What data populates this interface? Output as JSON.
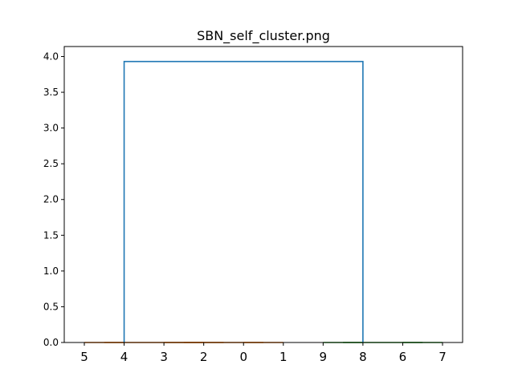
{
  "chart_data": {
    "type": "dendrogram",
    "title": "SBN_self_cluster.png",
    "xlabel": "",
    "ylabel": "",
    "leaf_order": [
      "5",
      "4",
      "3",
      "2",
      "0",
      "1",
      "9",
      "8",
      "6",
      "7"
    ],
    "ylim": [
      0,
      4.14
    ],
    "yticks": [
      "0.0",
      "0.5",
      "1.0",
      "1.5",
      "2.0",
      "2.5",
      "3.0",
      "3.5",
      "4.0"
    ],
    "ytick_values": [
      0,
      0.5,
      1.0,
      1.5,
      2.0,
      2.5,
      3.0,
      3.5,
      4.0
    ],
    "grid": false,
    "links": [
      {
        "name": "link-cluster-a-1",
        "left": 0,
        "right": 1,
        "height": 0.0,
        "color": "#ff7f0e"
      },
      {
        "name": "link-cluster-a-2",
        "left": 2,
        "right": 3,
        "height": 0.0,
        "color": "#ff7f0e"
      },
      {
        "name": "link-cluster-a-3",
        "left": 4,
        "right": 5,
        "height": 0.0,
        "color": "#ff7f0e"
      },
      {
        "name": "link-cluster-a-4",
        "left": 2.5,
        "right": 4.5,
        "height": 0.0,
        "color": "#ff7f0e"
      },
      {
        "name": "link-cluster-a-5",
        "left": 0.5,
        "right": 3.5,
        "height": 0.0,
        "color": "#ff7f0e"
      },
      {
        "name": "link-cluster-b-1",
        "left": 6,
        "right": 7,
        "height": 0.0,
        "color": "#2ca02c"
      },
      {
        "name": "link-cluster-b-2",
        "left": 8,
        "right": 9,
        "height": 0.0,
        "color": "#2ca02c"
      },
      {
        "name": "link-cluster-b-3",
        "left": 6.5,
        "right": 8.5,
        "height": 0.0,
        "color": "#2ca02c"
      },
      {
        "name": "link-root",
        "left": 1.0,
        "right": 7.0,
        "height": 3.93,
        "color": "#1f77b4"
      }
    ]
  }
}
